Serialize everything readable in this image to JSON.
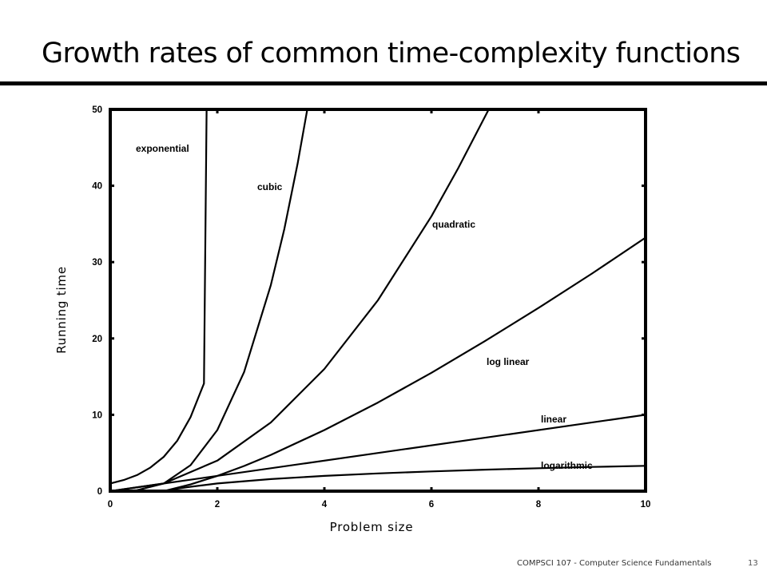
{
  "slide": {
    "title": "Growth rates of common time-complexity functions",
    "footer": "COMPSCI 107 - Computer Science Fundamentals",
    "page_number": "13"
  },
  "chart_data": {
    "type": "line",
    "title": "",
    "xlabel": "Problem size",
    "ylabel": "Running time",
    "xlim": [
      0,
      10
    ],
    "ylim": [
      0,
      50
    ],
    "xticks": [
      0,
      2,
      4,
      6,
      8,
      10
    ],
    "yticks": [
      0,
      10,
      20,
      30,
      40,
      50
    ],
    "grid": false,
    "series": [
      {
        "name": "exponential",
        "x": [
          0,
          0.25,
          0.5,
          0.75,
          1.0,
          1.25,
          1.5,
          1.75,
          1.8
        ],
        "y": [
          1,
          1.45,
          2.1,
          3.1,
          4.5,
          6.6,
          9.7,
          14.1,
          50
        ]
      },
      {
        "name": "cubic",
        "x": [
          0,
          0.5,
          1.0,
          1.5,
          2.0,
          2.5,
          3.0,
          3.25,
          3.5,
          3.68
        ],
        "y": [
          0,
          0.13,
          1,
          3.4,
          8,
          15.6,
          27,
          34.3,
          42.9,
          50
        ]
      },
      {
        "name": "quadratic",
        "x": [
          0,
          1,
          2,
          3,
          4,
          5,
          6,
          6.5,
          7.07
        ],
        "y": [
          0,
          1,
          4,
          9,
          16,
          25,
          36,
          42.3,
          50
        ]
      },
      {
        "name": "log linear",
        "x": [
          1,
          1.5,
          2,
          2.5,
          3,
          4,
          5,
          6,
          7,
          8,
          9,
          10
        ],
        "y": [
          0,
          0.88,
          2,
          3.3,
          4.75,
          8,
          11.6,
          15.5,
          19.65,
          24,
          28.5,
          33.2
        ]
      },
      {
        "name": "linear",
        "x": [
          0,
          10
        ],
        "y": [
          0,
          10
        ]
      },
      {
        "name": "logarithmic",
        "x": [
          1,
          1.25,
          1.5,
          2,
          3,
          4,
          5,
          6,
          7,
          8,
          9,
          10
        ],
        "y": [
          0,
          0.32,
          0.58,
          1,
          1.58,
          2,
          2.32,
          2.58,
          2.81,
          3,
          3.17,
          3.32
        ]
      }
    ]
  }
}
